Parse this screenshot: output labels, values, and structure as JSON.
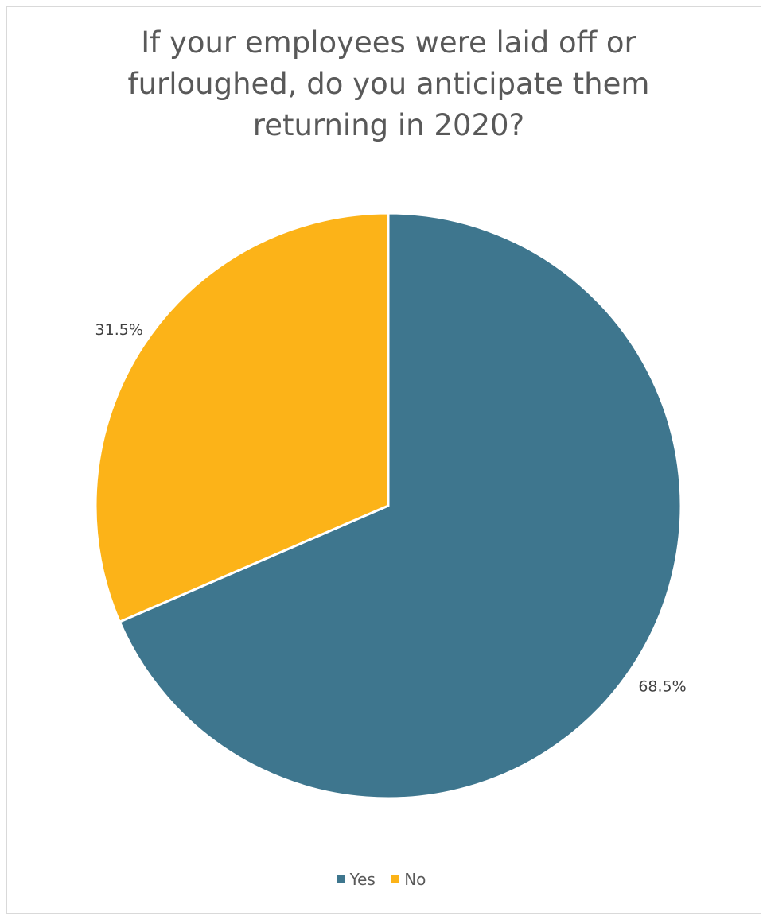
{
  "chart_data": {
    "type": "pie",
    "title": "If your employees were laid off or furloughed, do you anticipate them returning in 2020?",
    "title_lines": [
      "If your employees were laid off or",
      "furloughed, do you anticipate them",
      "returning in 2020?"
    ],
    "categories": [
      "Yes",
      "No"
    ],
    "values": [
      68.5,
      31.5
    ],
    "data_labels": [
      "68.5%",
      "31.5%"
    ],
    "colors": [
      "#3E768E",
      "#FCB318"
    ],
    "start_angle_deg": 0,
    "direction": "clockwise",
    "slice_border_color": "#ffffff",
    "legend": {
      "position": "bottom",
      "items": [
        {
          "label": "Yes",
          "color": "#3E768E"
        },
        {
          "label": "No",
          "color": "#FCB318"
        }
      ]
    }
  }
}
